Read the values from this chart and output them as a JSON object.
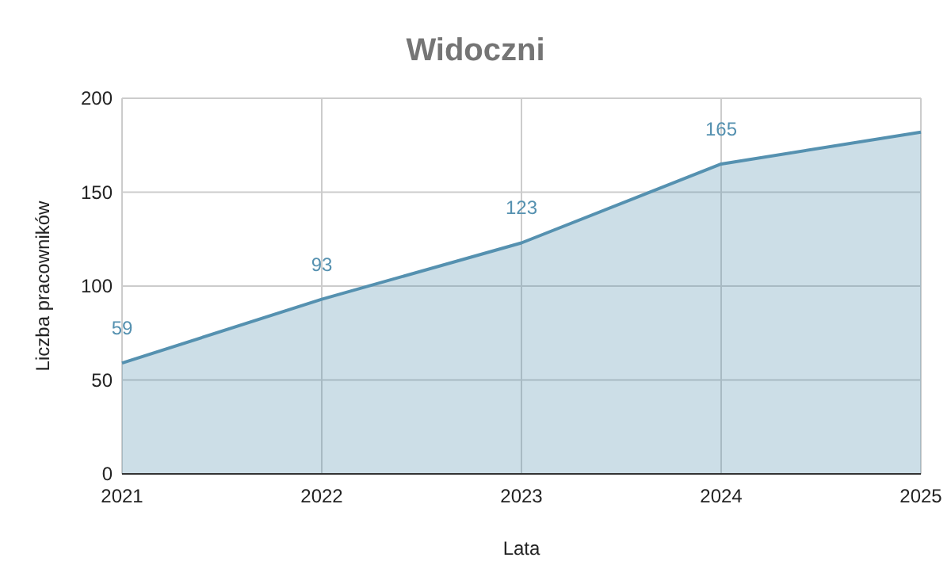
{
  "chart_data": {
    "type": "area",
    "title": "Widoczni",
    "xlabel": "Lata",
    "ylabel": "Liczba pracowników",
    "x": [
      2021,
      2022,
      2023,
      2024,
      2025
    ],
    "series": [
      {
        "color": "#5591b0",
        "values": [
          59,
          93,
          123,
          165,
          182
        ],
        "value_labels": [
          "59",
          "93",
          "123",
          "165",
          null
        ]
      }
    ],
    "xlim": [
      2021,
      2025
    ],
    "xticks": [
      2021,
      2022,
      2023,
      2024,
      2025
    ],
    "ylim": [
      0,
      200
    ],
    "yticks": [
      0,
      50,
      100,
      150,
      200
    ],
    "grid": true
  }
}
